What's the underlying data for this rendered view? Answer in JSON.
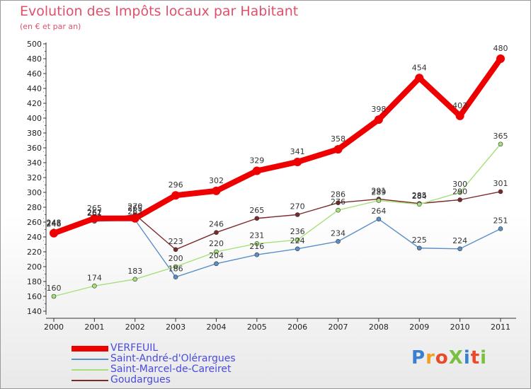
{
  "chart_data": {
    "type": "line",
    "title": "Evolution des Impôts locaux par Habitant",
    "subtitle": "(en € et par an)",
    "xlabel": "",
    "ylabel": "",
    "ylim": [
      140,
      500
    ],
    "yticks": [
      140,
      160,
      180,
      200,
      220,
      240,
      260,
      280,
      300,
      320,
      340,
      360,
      380,
      400,
      420,
      440,
      460,
      480,
      500
    ],
    "grid": false,
    "legend_position": "bottom-left",
    "categories": [
      "2000",
      "2001",
      "2002",
      "2003",
      "2004",
      "2005",
      "2006",
      "2007",
      "2008",
      "2009",
      "2010",
      "2011"
    ],
    "series": [
      {
        "name": "VERFEUIL",
        "color": "#ee0000",
        "values": [
          245,
          265,
          265,
          296,
          302,
          329,
          341,
          358,
          398,
          454,
          403,
          480
        ],
        "labels": [
          "245",
          "265",
          "265",
          "296",
          "302",
          "329",
          "341",
          "358",
          "398",
          "454",
          "403",
          "480"
        ]
      },
      {
        "name": "Saint-André-d'Olérargues",
        "color": "#5b8fc8",
        "values": [
          248,
          261,
          263,
          186,
          204,
          216,
          224,
          234,
          264,
          225,
          224,
          251
        ],
        "labels": [
          "248",
          "261",
          "263",
          "186",
          "204",
          "216",
          "224",
          "234",
          "264",
          "225",
          "224",
          "251"
        ]
      },
      {
        "name": "Saint-Marcel-de-Careiret",
        "color": "#a6e07a",
        "values": [
          160,
          174,
          183,
          200,
          220,
          231,
          236,
          276,
          289,
          284,
          300,
          365
        ],
        "labels": [
          "160",
          "174",
          "183",
          "200",
          "220",
          "231",
          "236",
          "276",
          "289",
          "284",
          "300",
          "365"
        ]
      },
      {
        "name": "Goudargues",
        "color": "#7a2a2a",
        "values": [
          246,
          262,
          270,
          223,
          246,
          265,
          270,
          286,
          291,
          285,
          290,
          301
        ],
        "labels": [
          "246",
          "262",
          "270",
          "223",
          "246",
          "265",
          "270",
          "286",
          "291",
          "285",
          "290",
          "301"
        ]
      }
    ]
  },
  "logo": {
    "text": "ProXiti",
    "colors": [
      "#3a7fd0",
      "#f0a020",
      "#e84a2a",
      "#7ac040",
      "#3a7fd0",
      "#e84a2a",
      "#7ac040"
    ]
  }
}
